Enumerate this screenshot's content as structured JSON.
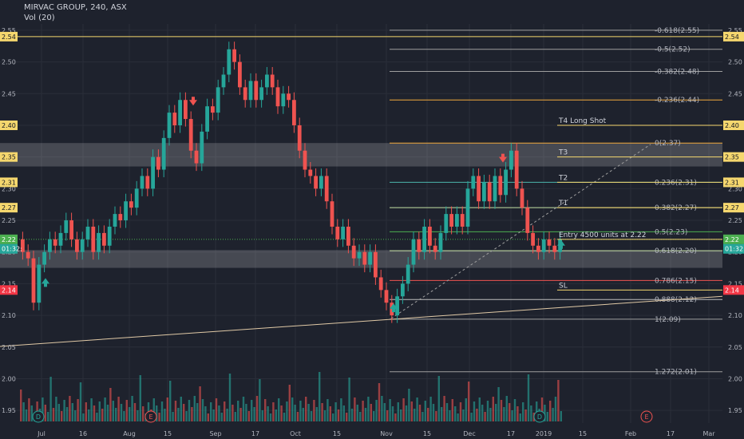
{
  "header": {
    "title": "MIRVAC GROUP, 240, ASX",
    "volume_label": "Vol (20)"
  },
  "colors": {
    "background": "#1e222d",
    "up": "#26a69a",
    "down": "#ef5350",
    "grid": "#2a2e39",
    "axis_text": "#b2b5be",
    "zone": "#ffffff",
    "fib_text": "#b2b5be"
  },
  "chart_data": {
    "type": "candlestick",
    "price_axis": {
      "ylim": [
        1.93,
        2.56
      ],
      "ticks": [
        2.55,
        2.5,
        2.45,
        2.4,
        2.35,
        2.3,
        2.25,
        2.2,
        2.15,
        2.1,
        2.05,
        2.0,
        1.95
      ]
    },
    "time_axis": {
      "labels": [
        "Jul",
        "16",
        "Aug",
        "15",
        "Sep",
        "17",
        "Oct",
        "15",
        "Nov",
        "15",
        "Dec",
        "17",
        "2019",
        "15",
        "Feb",
        "17",
        "Mar"
      ]
    },
    "price_tags": [
      {
        "label": "2.54",
        "value": 2.54,
        "color": "#f5d76e",
        "text_color": "#131722"
      },
      {
        "label": "2.40",
        "value": 2.4,
        "color": "#f5d76e",
        "text_color": "#131722"
      },
      {
        "label": "2.35",
        "value": 2.35,
        "color": "#f5d76e",
        "text_color": "#131722"
      },
      {
        "label": "2.31",
        "value": 2.31,
        "color": "#f5d76e",
        "text_color": "#131722"
      },
      {
        "label": "2.27",
        "value": 2.27,
        "color": "#f5d76e",
        "text_color": "#131722"
      },
      {
        "label": "2.22",
        "value": 2.22,
        "color": "#4caf50",
        "text_color": "#ffffff"
      },
      {
        "label": "01:32:",
        "value": 2.205,
        "color": "#26a69a",
        "text_color": "#ffffff"
      },
      {
        "label": "2.14",
        "value": 2.14,
        "color": "#f23645",
        "text_color": "#ffffff"
      }
    ],
    "zones": [
      {
        "from": 2.335,
        "to": 2.372
      },
      {
        "from": 2.175,
        "to": 2.203
      }
    ],
    "fib_levels": [
      {
        "label": "-0.618(2.55)",
        "value": 2.55,
        "color": "#9e9e9e"
      },
      {
        "label": "-0.5(2.52)",
        "value": 2.52,
        "color": "#9e9e9e"
      },
      {
        "label": "-0.382(2.48)",
        "value": 2.485,
        "color": "#9e9e9e"
      },
      {
        "label": "-0.236(2.44)",
        "value": 2.44,
        "color": "#f0a83c"
      },
      {
        "label": "0(2.37)",
        "value": 2.372,
        "color": "#f0a83c"
      },
      {
        "label": "0.236(2.31)",
        "value": 2.31,
        "color": "#4db6ac"
      },
      {
        "label": "0.382(2.27)",
        "value": 2.27,
        "color": "#c5e1a5"
      },
      {
        "label": "0.5(2.23)",
        "value": 2.232,
        "color": "#4caf50"
      },
      {
        "label": "0.618(2.20)",
        "value": 2.202,
        "color": "#c5e1a5"
      },
      {
        "label": "0.786(2.15)",
        "value": 2.155,
        "color": "#ef5350"
      },
      {
        "label": "0.888(2.12)",
        "value": 2.125,
        "color": "#bdbdbd"
      },
      {
        "label": "1(2.09)",
        "value": 2.094,
        "color": "#9e9e9e"
      },
      {
        "label": "1.272(2.01)",
        "value": 2.011,
        "color": "#9e9e9e"
      }
    ],
    "annotations": [
      {
        "label": "T4 Long Shot",
        "value": 2.4
      },
      {
        "label": "T3",
        "value": 2.35
      },
      {
        "label": "T2",
        "value": 2.31
      },
      {
        "label": "T1",
        "value": 2.27
      },
      {
        "label": "Entry 4500 units at 2.22",
        "value": 2.22
      },
      {
        "label": "SL",
        "value": 2.14
      }
    ],
    "event_markers": [
      {
        "label": "D"
      },
      {
        "label": "E"
      },
      {
        "label": "D"
      },
      {
        "label": "E"
      }
    ],
    "candles": [
      [
        2.22,
        2.2
      ],
      [
        2.2,
        2.19
      ],
      [
        2.19,
        2.12
      ],
      [
        2.12,
        2.18
      ],
      [
        2.18,
        2.2
      ],
      [
        2.2,
        2.22
      ],
      [
        2.22,
        2.21
      ],
      [
        2.21,
        2.23
      ],
      [
        2.23,
        2.25
      ],
      [
        2.25,
        2.22
      ],
      [
        2.22,
        2.2
      ],
      [
        2.2,
        2.22
      ],
      [
        2.22,
        2.24
      ],
      [
        2.24,
        2.2
      ],
      [
        2.2,
        2.23
      ],
      [
        2.23,
        2.21
      ],
      [
        2.21,
        2.24
      ],
      [
        2.24,
        2.26
      ],
      [
        2.26,
        2.25
      ],
      [
        2.25,
        2.28
      ],
      [
        2.28,
        2.27
      ],
      [
        2.27,
        2.3
      ],
      [
        2.3,
        2.32
      ],
      [
        2.32,
        2.3
      ],
      [
        2.3,
        2.35
      ],
      [
        2.35,
        2.33
      ],
      [
        2.33,
        2.38
      ],
      [
        2.38,
        2.42
      ],
      [
        2.42,
        2.4
      ],
      [
        2.4,
        2.44
      ],
      [
        2.44,
        2.41
      ],
      [
        2.41,
        2.36
      ],
      [
        2.36,
        2.34
      ],
      [
        2.34,
        2.39
      ],
      [
        2.39,
        2.43
      ],
      [
        2.43,
        2.42
      ],
      [
        2.42,
        2.46
      ],
      [
        2.46,
        2.48
      ],
      [
        2.48,
        2.52
      ],
      [
        2.52,
        2.5
      ],
      [
        2.5,
        2.46
      ],
      [
        2.46,
        2.44
      ],
      [
        2.44,
        2.47
      ],
      [
        2.47,
        2.44
      ],
      [
        2.44,
        2.46
      ],
      [
        2.46,
        2.48
      ],
      [
        2.48,
        2.46
      ],
      [
        2.46,
        2.43
      ],
      [
        2.43,
        2.45
      ],
      [
        2.45,
        2.44
      ],
      [
        2.44,
        2.4
      ],
      [
        2.4,
        2.36
      ],
      [
        2.36,
        2.33
      ],
      [
        2.33,
        2.32
      ],
      [
        2.32,
        2.3
      ],
      [
        2.3,
        2.32
      ],
      [
        2.32,
        2.28
      ],
      [
        2.28,
        2.24
      ],
      [
        2.24,
        2.22
      ],
      [
        2.22,
        2.24
      ],
      [
        2.24,
        2.21
      ],
      [
        2.21,
        2.19
      ],
      [
        2.19,
        2.2
      ],
      [
        2.2,
        2.18
      ],
      [
        2.18,
        2.2
      ],
      [
        2.2,
        2.16
      ],
      [
        2.16,
        2.14
      ],
      [
        2.14,
        2.12
      ],
      [
        2.12,
        2.1
      ],
      [
        2.1,
        2.13
      ],
      [
        2.13,
        2.15
      ],
      [
        2.15,
        2.18
      ],
      [
        2.18,
        2.22
      ],
      [
        2.22,
        2.2
      ],
      [
        2.2,
        2.24
      ],
      [
        2.24,
        2.21
      ],
      [
        2.21,
        2.2
      ],
      [
        2.2,
        2.23
      ],
      [
        2.23,
        2.26
      ],
      [
        2.26,
        2.24
      ],
      [
        2.24,
        2.26
      ],
      [
        2.26,
        2.24
      ],
      [
        2.24,
        2.3
      ],
      [
        2.3,
        2.32
      ],
      [
        2.32,
        2.28
      ],
      [
        2.28,
        2.31
      ],
      [
        2.31,
        2.28
      ],
      [
        2.28,
        2.32
      ],
      [
        2.32,
        2.29
      ],
      [
        2.29,
        2.33
      ],
      [
        2.33,
        2.36
      ],
      [
        2.36,
        2.3
      ],
      [
        2.3,
        2.27
      ],
      [
        2.27,
        2.23
      ],
      [
        2.23,
        2.21
      ],
      [
        2.21,
        2.2
      ],
      [
        2.2,
        2.22
      ],
      [
        2.22,
        2.21
      ],
      [
        2.21,
        2.2
      ],
      [
        2.2,
        2.22
      ]
    ],
    "volume_ylim": [
      1.93,
      2.56
    ]
  }
}
